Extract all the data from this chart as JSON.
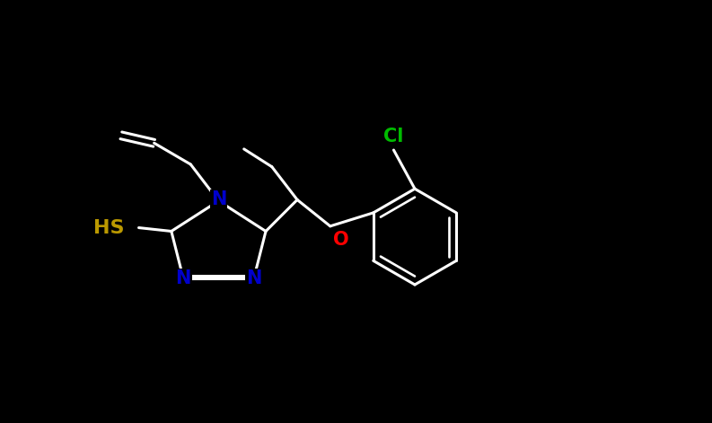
{
  "bg_color": "#000000",
  "bond_color": "#ffffff",
  "N_color": "#0000cc",
  "O_color": "#ff0000",
  "S_color": "#bb9900",
  "Cl_color": "#00bb00",
  "line_width": 2.2,
  "font_size": 15,
  "figsize": [
    7.93,
    4.71
  ],
  "dpi": 100,
  "xlim": [
    0,
    10
  ],
  "ylim": [
    0,
    6
  ]
}
